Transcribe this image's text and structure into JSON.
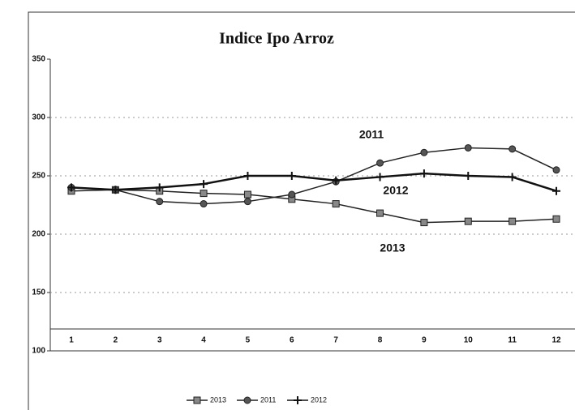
{
  "chart_data": {
    "type": "line",
    "title": "Indice Ipo Arroz",
    "categories": [
      "1",
      "2",
      "3",
      "4",
      "5",
      "6",
      "7",
      "8",
      "9",
      "10",
      "11",
      "12"
    ],
    "series": [
      {
        "name": "2013",
        "color": "#222",
        "marker": "square",
        "values": [
          237,
          238,
          237,
          235,
          234,
          230,
          226,
          218,
          210,
          211,
          211,
          213
        ]
      },
      {
        "name": "2011",
        "color": "#222",
        "marker": "circle",
        "values": [
          240,
          238,
          228,
          226,
          228,
          234,
          245,
          261,
          270,
          274,
          273,
          255
        ]
      },
      {
        "name": "2012",
        "color": "#111",
        "marker": "star",
        "values": [
          240,
          238,
          240,
          243,
          250,
          250,
          246,
          249,
          252,
          250,
          249,
          237
        ]
      }
    ],
    "annotations": [
      "2011",
      "2012",
      "2013"
    ],
    "ylim": [
      100,
      350
    ],
    "yticks": [
      100,
      150,
      200,
      250,
      300,
      350
    ],
    "grid": true,
    "legend": "bottom"
  }
}
